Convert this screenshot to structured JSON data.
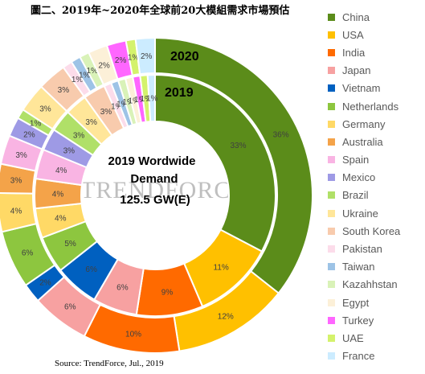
{
  "title": "圖二、2019年~2020年全球前20大模組需求市場預估",
  "source": "Source: TrendForce, Jul., 2019",
  "watermark": "TRENDFORCE",
  "chart_data": {
    "type": "donut",
    "center_lines": [
      "2019 Wordwide",
      "Demand",
      "125.5 GW(E)"
    ],
    "ring_labels": {
      "outer": "2020",
      "inner": "2019"
    },
    "categories": [
      "China",
      "USA",
      "India",
      "Japan",
      "Vietnam",
      "Netherlands",
      "Germany",
      "Australia",
      "Spain",
      "Mexico",
      "Brazil",
      "Ukraine",
      "South Korea",
      "Pakistan",
      "Taiwan",
      "Kazahhstan",
      "Egypt",
      "Turkey",
      "UAE",
      "France"
    ],
    "colors": [
      "#5b8c1a",
      "#ffc000",
      "#ff6a00",
      "#f7a1a1",
      "#0060c0",
      "#8dc63f",
      "#ffd966",
      "#f4a349",
      "#f9b4e3",
      "#9e9ae5",
      "#b0e068",
      "#ffe699",
      "#f8cbad",
      "#fcdcea",
      "#9dc3e6",
      "#d9f2b8",
      "#fcf0d8",
      "#ff66ff",
      "#d4f26c",
      "#ccecff"
    ],
    "series": [
      {
        "name": "2020",
        "ring": "outer",
        "values": [
          36,
          12,
          10,
          6,
          2,
          6,
          4,
          3,
          3,
          2,
          1,
          3,
          3,
          1,
          1,
          1,
          2,
          2,
          1,
          2
        ],
        "labels": [
          "36%",
          "12%",
          "10%",
          "6%",
          "2%",
          "6%",
          "4%",
          "3%",
          "3%",
          "2%",
          "1%",
          "3%",
          "3%",
          "1%",
          "1%",
          "1%",
          "2%",
          "2%",
          "1%",
          "2%"
        ]
      },
      {
        "name": "2019",
        "ring": "inner",
        "values": [
          33,
          11,
          9,
          6,
          6,
          5,
          4,
          4,
          4,
          3,
          3,
          3,
          3,
          1,
          1,
          1,
          1,
          1,
          1,
          1
        ],
        "labels": [
          "33%",
          "11%",
          "9%",
          "6%",
          "6%",
          "5%",
          "4%",
          "4%",
          "4%",
          "3%",
          "3%",
          "3%",
          "3%",
          "1%",
          "1%",
          "1%",
          "1%",
          "1%",
          "1%",
          "1%"
        ]
      }
    ],
    "legend_position": "right"
  }
}
